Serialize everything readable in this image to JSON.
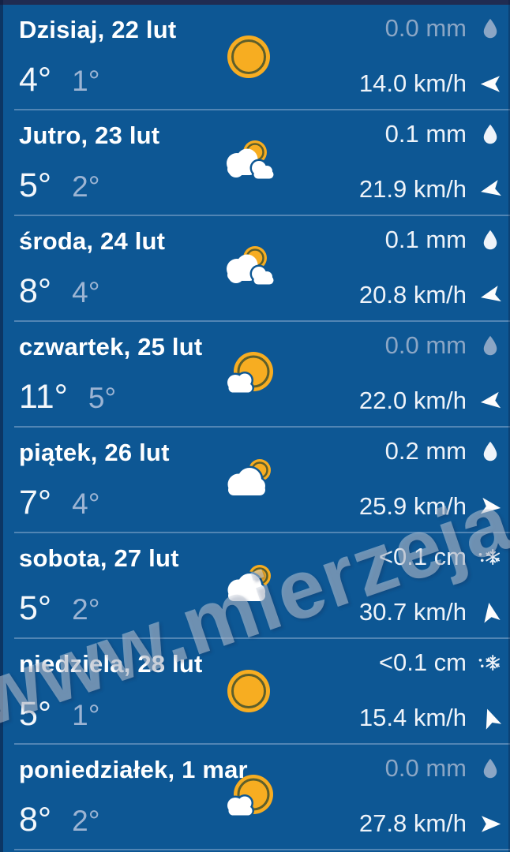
{
  "watermark": "www.mierzeja.pl",
  "colors": {
    "background_blue": "#0d5794",
    "sun_amber": "#F7AD21",
    "sun_ring": "#5E5F2B",
    "muted_text": "#8ba6c5",
    "primary_text": "#ffffff",
    "low_temp_text": "#9cb4d3",
    "divider": "rgba(150,180,212,0.5)"
  },
  "rows": [
    {
      "title": "Dzisiaj, 22 lut",
      "high": "4°",
      "low": "1°",
      "icon": "sun",
      "precip": "0.0 mm",
      "precip_icon": "rain",
      "precip_muted": true,
      "wind": "14.0 km/h",
      "wind_arrow_deg": -90
    },
    {
      "title": "Jutro, 23 lut",
      "high": "5°",
      "low": "2°",
      "icon": "sun-behind-clouds",
      "precip": "0.1 mm",
      "precip_icon": "rain",
      "precip_muted": false,
      "wind": "21.9 km/h",
      "wind_arrow_deg": -102
    },
    {
      "title": "środa, 24 lut",
      "high": "8°",
      "low": "4°",
      "icon": "sun-behind-clouds",
      "precip": "0.1 mm",
      "precip_icon": "rain",
      "precip_muted": false,
      "wind": "20.8 km/h",
      "wind_arrow_deg": -102
    },
    {
      "title": "czwartek, 25 lut",
      "high": "11°",
      "low": "5°",
      "icon": "sun-small-cloud",
      "precip": "0.0 mm",
      "precip_icon": "rain",
      "precip_muted": true,
      "wind": "22.0 km/h",
      "wind_arrow_deg": -97
    },
    {
      "title": "piątek, 26 lut",
      "high": "7°",
      "low": "4°",
      "icon": "cloud-sun",
      "precip": "0.2 mm",
      "precip_icon": "rain",
      "precip_muted": false,
      "wind": "25.9 km/h",
      "wind_arrow_deg": 97
    },
    {
      "title": "sobota, 27 lut",
      "high": "5°",
      "low": "2°",
      "icon": "cloud-sun",
      "precip": "<0.1 cm",
      "precip_icon": "snow",
      "precip_muted": false,
      "wind": "30.7 km/h",
      "wind_arrow_deg": -10
    },
    {
      "title": "niedziela, 28 lut",
      "high": "5°",
      "low": "1°",
      "icon": "sun",
      "precip": "<0.1 cm",
      "precip_icon": "snow",
      "precip_muted": false,
      "wind": "15.4 km/h",
      "wind_arrow_deg": -20
    },
    {
      "title": "poniedziałek, 1 mar",
      "high": "8°",
      "low": "2°",
      "icon": "sun-small-cloud",
      "precip": "0.0 mm",
      "precip_icon": "rain",
      "precip_muted": true,
      "wind": "27.8 km/h",
      "wind_arrow_deg": 90
    }
  ]
}
